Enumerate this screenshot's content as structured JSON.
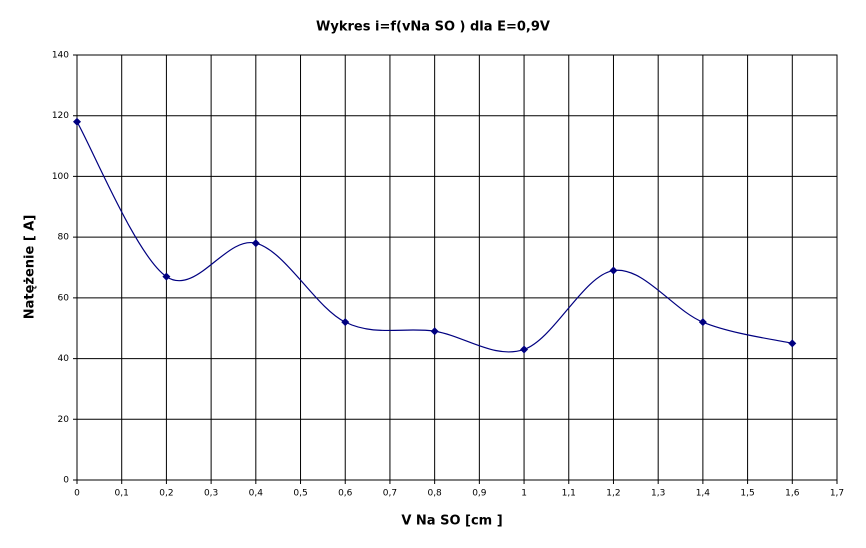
{
  "chart_data": {
    "type": "line",
    "title": "Wykres i=f(vNa SO ) dla E=0,9V",
    "xlabel": "V Na SO  [cm ]",
    "ylabel": "Natężenie [  A]",
    "x": [
      0,
      0.2,
      0.4,
      0.6,
      0.8,
      1,
      1.2,
      1.4,
      1.6
    ],
    "values": [
      118,
      67,
      78,
      52,
      49,
      43,
      69,
      52,
      45
    ],
    "color": "#000080",
    "smooth": true,
    "grid": true,
    "xlim": [
      0,
      1.7
    ],
    "xticks": [
      0,
      {
        "value": 0.1,
        "label": "0,1"
      },
      {
        "value": 0.2,
        "label": "0,2"
      },
      {
        "value": 0.3,
        "label": "0,3"
      },
      {
        "value": 0.4,
        "label": "0,4"
      },
      {
        "value": 0.5,
        "label": "0,5"
      },
      {
        "value": 0.6,
        "label": "0,6"
      },
      {
        "value": 0.7,
        "label": "0,7"
      },
      {
        "value": 0.8,
        "label": "0,8"
      },
      {
        "value": 0.9,
        "label": "0,9"
      },
      1,
      {
        "value": 1.1,
        "label": "1,1"
      },
      {
        "value": 1.2,
        "label": "1,2"
      },
      {
        "value": 1.3,
        "label": "1,3"
      },
      {
        "value": 1.4,
        "label": "1,4"
      },
      {
        "value": 1.5,
        "label": "1,5"
      },
      {
        "value": 1.6,
        "label": "1,6"
      },
      {
        "value": 1.7,
        "label": "1,7"
      }
    ],
    "ylim": [
      0,
      140
    ],
    "yticks": [
      0,
      20,
      40,
      60,
      80,
      100,
      120,
      140
    ]
  }
}
